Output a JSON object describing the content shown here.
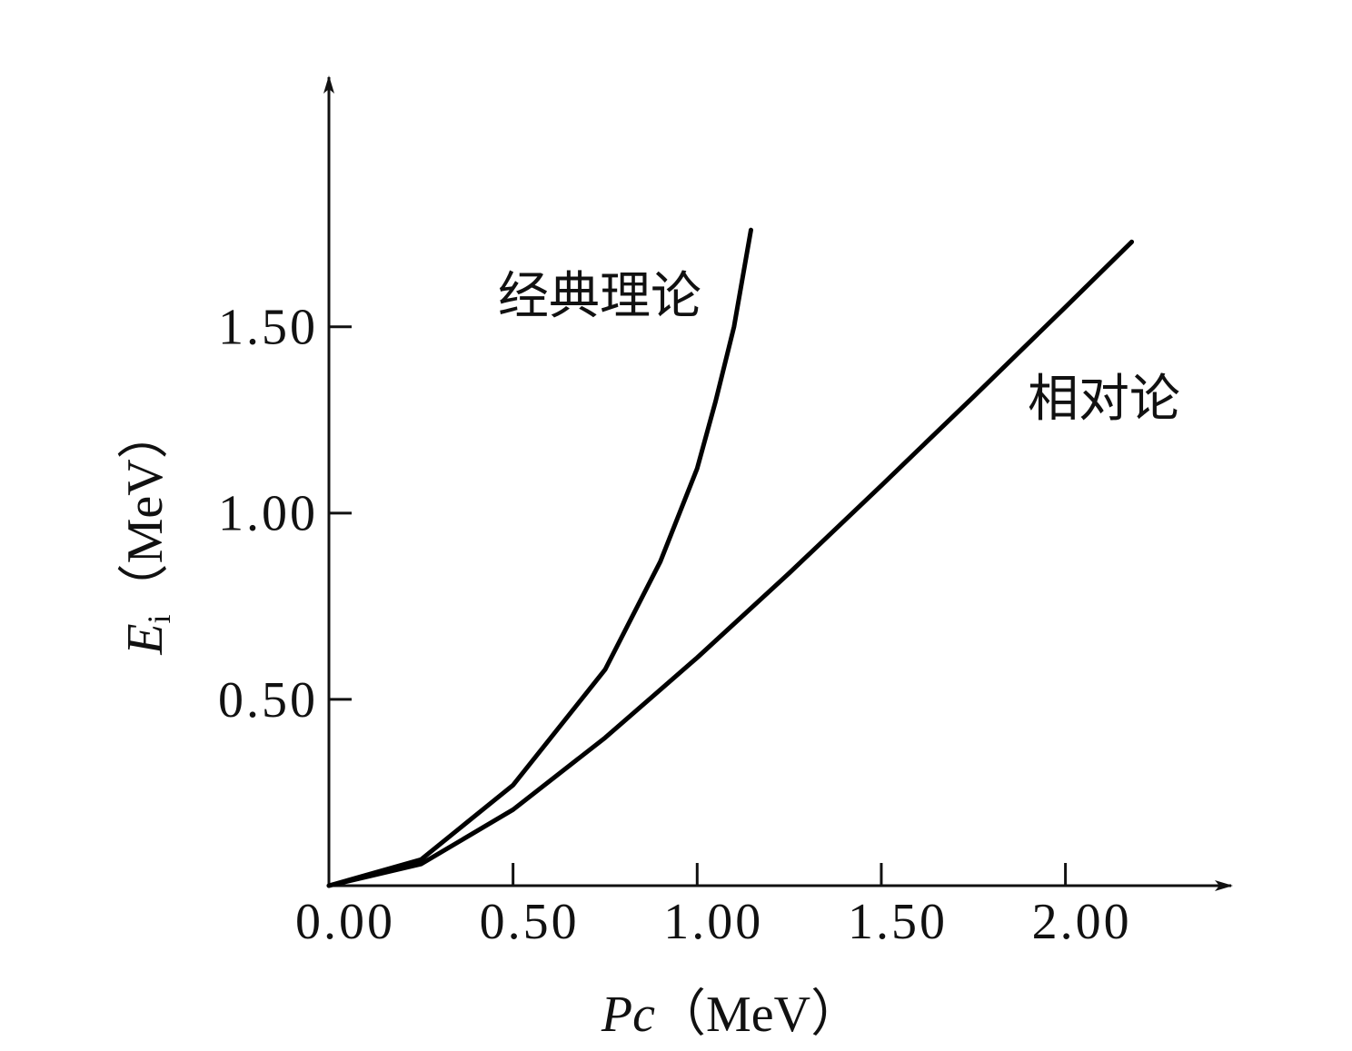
{
  "chart_data": {
    "type": "line",
    "x_label": {
      "symbol": "Pc",
      "unit": "（MeV）"
    },
    "y_label": {
      "symbol": "E",
      "subscript": "i",
      "unit": "（MeV）"
    },
    "series": [
      {
        "name": "经典理论",
        "color": "#000000",
        "x": [
          0,
          0.25,
          0.5,
          0.75,
          0.9,
          1.0,
          1.05,
          1.1,
          1.146
        ],
        "values": [
          0,
          0.07,
          0.27,
          0.58,
          0.87,
          1.12,
          1.3,
          1.5,
          1.76
        ]
      },
      {
        "name": "相对论",
        "color": "#000000",
        "x": [
          0,
          0.25,
          0.5,
          0.75,
          1.0,
          1.25,
          1.5,
          1.75,
          2.0,
          2.18
        ],
        "values": [
          0,
          0.058,
          0.204,
          0.397,
          0.612,
          0.839,
          1.074,
          1.312,
          1.553,
          1.728
        ]
      }
    ],
    "xlim": [
      0,
      2.45
    ],
    "ylim": [
      0,
      2.17
    ],
    "xticks": [
      {
        "value": 0,
        "label": "0.00"
      },
      {
        "value": 0.5,
        "label": "0.50"
      },
      {
        "value": 1,
        "label": "1.00"
      },
      {
        "value": 1.5,
        "label": "1.50"
      },
      {
        "value": 2,
        "label": "2.00"
      }
    ],
    "yticks": [
      {
        "value": 0.5,
        "label": "0.50"
      },
      {
        "value": 1,
        "label": "1.00"
      },
      {
        "value": 1.5,
        "label": "1.50"
      }
    ],
    "grid": false
  }
}
